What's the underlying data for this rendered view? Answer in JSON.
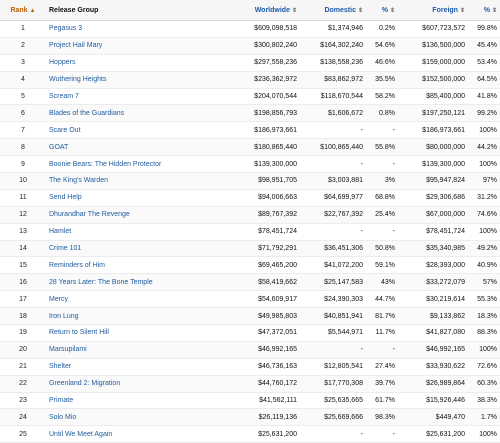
{
  "table": {
    "headers": {
      "rank": "Rank",
      "release_group": "Release Group",
      "worldwide": "Worldwide",
      "domestic": "Domestic",
      "dom_pct": "%",
      "foreign": "Foreign",
      "for_pct": "%"
    },
    "sort_icons": {
      "rank": "▲",
      "other": "⇕"
    },
    "rows": [
      {
        "rank": "1",
        "title": "Pegasus 3",
        "worldwide": "$609,098,518",
        "domestic": "$1,374,946",
        "dom_pct": "0.2%",
        "foreign": "$607,723,572",
        "for_pct": "99.8%"
      },
      {
        "rank": "2",
        "title": "Project Hail Mary",
        "worldwide": "$300,802,240",
        "domestic": "$164,302,240",
        "dom_pct": "54.6%",
        "foreign": "$136,500,000",
        "for_pct": "45.4%"
      },
      {
        "rank": "3",
        "title": "Hoppers",
        "worldwide": "$297,558,236",
        "domestic": "$138,558,236",
        "dom_pct": "46.6%",
        "foreign": "$159,000,000",
        "for_pct": "53.4%"
      },
      {
        "rank": "4",
        "title": "Wuthering Heights",
        "worldwide": "$236,362,972",
        "domestic": "$83,862,972",
        "dom_pct": "35.5%",
        "foreign": "$152,500,000",
        "for_pct": "64.5%"
      },
      {
        "rank": "5",
        "title": "Scream 7",
        "worldwide": "$204,070,544",
        "domestic": "$118,670,544",
        "dom_pct": "58.2%",
        "foreign": "$85,400,000",
        "for_pct": "41.8%"
      },
      {
        "rank": "6",
        "title": "Blades of the Guardians",
        "worldwide": "$198,856,793",
        "domestic": "$1,606,672",
        "dom_pct": "0.8%",
        "foreign": "$197,250,121",
        "for_pct": "99.2%"
      },
      {
        "rank": "7",
        "title": "Scare Out",
        "worldwide": "$186,973,661",
        "domestic": "-",
        "dom_pct": "-",
        "foreign": "$186,973,661",
        "for_pct": "100%"
      },
      {
        "rank": "8",
        "title": "GOAT",
        "worldwide": "$180,865,440",
        "domestic": "$100,865,440",
        "dom_pct": "55.8%",
        "foreign": "$80,000,000",
        "for_pct": "44.2%"
      },
      {
        "rank": "9",
        "title": "Boonie Bears: The Hidden Protector",
        "worldwide": "$139,300,000",
        "domestic": "-",
        "dom_pct": "-",
        "foreign": "$139,300,000",
        "for_pct": "100%"
      },
      {
        "rank": "10",
        "title": "The King's Warden",
        "worldwide": "$98,951,705",
        "domestic": "$3,003,881",
        "dom_pct": "3%",
        "foreign": "$95,947,824",
        "for_pct": "97%"
      },
      {
        "rank": "11",
        "title": "Send Help",
        "worldwide": "$94,006,663",
        "domestic": "$64,699,977",
        "dom_pct": "68.8%",
        "foreign": "$29,306,686",
        "for_pct": "31.2%"
      },
      {
        "rank": "12",
        "title": "Dhurandhar The Revenge",
        "worldwide": "$89,767,392",
        "domestic": "$22,767,392",
        "dom_pct": "25.4%",
        "foreign": "$67,000,000",
        "for_pct": "74.6%"
      },
      {
        "rank": "13",
        "title": "Hamlet",
        "worldwide": "$78,451,724",
        "domestic": "-",
        "dom_pct": "-",
        "foreign": "$78,451,724",
        "for_pct": "100%"
      },
      {
        "rank": "14",
        "title": "Crime 101",
        "worldwide": "$71,792,291",
        "domestic": "$36,451,306",
        "dom_pct": "50.8%",
        "foreign": "$35,340,985",
        "for_pct": "49.2%"
      },
      {
        "rank": "15",
        "title": "Reminders of Him",
        "worldwide": "$69,465,200",
        "domestic": "$41,072,200",
        "dom_pct": "59.1%",
        "foreign": "$28,393,000",
        "for_pct": "40.9%"
      },
      {
        "rank": "16",
        "title": "28 Years Later: The Bone Temple",
        "worldwide": "$58,419,662",
        "domestic": "$25,147,583",
        "dom_pct": "43%",
        "foreign": "$33,272,079",
        "for_pct": "57%"
      },
      {
        "rank": "17",
        "title": "Mercy",
        "worldwide": "$54,609,917",
        "domestic": "$24,390,303",
        "dom_pct": "44.7%",
        "foreign": "$30,219,614",
        "for_pct": "55.3%"
      },
      {
        "rank": "18",
        "title": "Iron Lung",
        "worldwide": "$49,985,803",
        "domestic": "$40,851,941",
        "dom_pct": "81.7%",
        "foreign": "$9,133,862",
        "for_pct": "18.3%"
      },
      {
        "rank": "19",
        "title": "Return to Silent Hill",
        "worldwide": "$47,372,051",
        "domestic": "$5,544,971",
        "dom_pct": "11.7%",
        "foreign": "$41,827,080",
        "for_pct": "88.3%"
      },
      {
        "rank": "20",
        "title": "Marsupilami",
        "worldwide": "$46,992,165",
        "domestic": "-",
        "dom_pct": "-",
        "foreign": "$46,992,165",
        "for_pct": "100%"
      },
      {
        "rank": "21",
        "title": "Shelter",
        "worldwide": "$46,736,163",
        "domestic": "$12,805,541",
        "dom_pct": "27.4%",
        "foreign": "$33,930,622",
        "for_pct": "72.6%"
      },
      {
        "rank": "22",
        "title": "Greenland 2: Migration",
        "worldwide": "$44,760,172",
        "domestic": "$17,770,308",
        "dom_pct": "39.7%",
        "foreign": "$26,989,864",
        "for_pct": "60.3%"
      },
      {
        "rank": "23",
        "title": "Primate",
        "worldwide": "$41,562,111",
        "domestic": "$25,635,665",
        "dom_pct": "61.7%",
        "foreign": "$15,926,446",
        "for_pct": "38.3%"
      },
      {
        "rank": "24",
        "title": "Solo Mio",
        "worldwide": "$26,119,136",
        "domestic": "$25,669,666",
        "dom_pct": "98.3%",
        "foreign": "$449,470",
        "for_pct": "1.7%"
      },
      {
        "rank": "25",
        "title": "Until We Meet Again",
        "worldwide": "$25,631,200",
        "domestic": "-",
        "dom_pct": "-",
        "foreign": "$25,631,200",
        "for_pct": "100%"
      }
    ]
  }
}
